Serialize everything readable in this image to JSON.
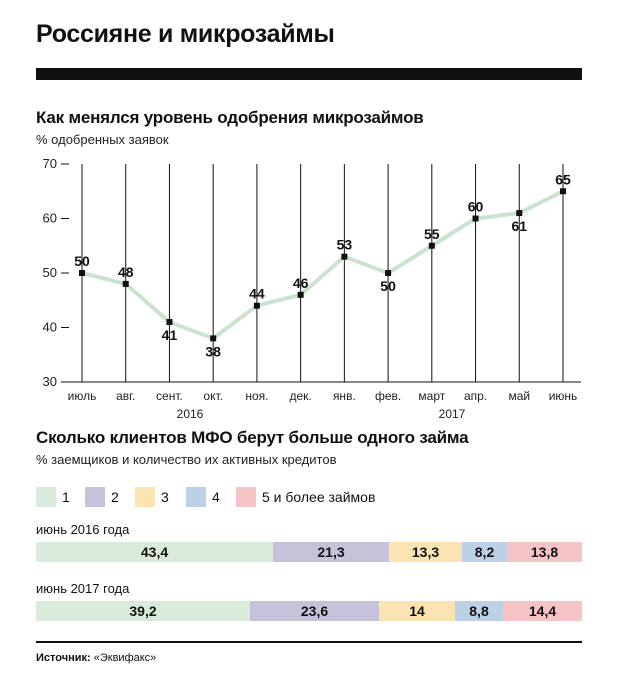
{
  "title": "Россияне и микрозаймы",
  "chart_data": [
    {
      "type": "line",
      "title": "Как менялся уровень одобрения микрозаймов",
      "subtitle": "% одобренных заявок",
      "categories": [
        "июль",
        "авг.",
        "сент.",
        "окт.",
        "ноя.",
        "дек.",
        "янв.",
        "фев.",
        "март",
        "апр.",
        "май",
        "июнь"
      ],
      "year_labels": [
        "2016",
        "2017"
      ],
      "values": [
        50,
        48,
        41,
        38,
        44,
        46,
        53,
        50,
        55,
        60,
        61,
        65
      ],
      "ylim": [
        30,
        70
      ],
      "yticks": [
        30,
        40,
        50,
        60,
        70
      ],
      "grid": "vertical",
      "line_color": "#c9e3cf"
    },
    {
      "type": "bar",
      "orientation": "horizontal-stacked-100",
      "title": "Сколько клиентов МФО берут больше одного займа",
      "subtitle": "% заемщиков и количество их активных кредитов",
      "legend": [
        {
          "label": "1",
          "color": "#d9ecdb"
        },
        {
          "label": "2",
          "color": "#c6c2d9"
        },
        {
          "label": "3",
          "color": "#fbe3b2"
        },
        {
          "label": "4",
          "color": "#bcd0e6"
        },
        {
          "label": "5 и более займов",
          "color": "#f6c4c6"
        }
      ],
      "rows": [
        {
          "label": "июнь 2016 года",
          "values": [
            43.4,
            21.3,
            13.3,
            8.2,
            13.8
          ],
          "value_labels": [
            "43,4",
            "21,3",
            "13,3",
            "8,2",
            "13,8"
          ]
        },
        {
          "label": "июнь 2017 года",
          "values": [
            39.2,
            23.6,
            14,
            8.8,
            14.4
          ],
          "value_labels": [
            "39,2",
            "23,6",
            "14",
            "8,8",
            "14,4"
          ]
        }
      ]
    }
  ],
  "source": {
    "label": "Источник:",
    "text": "«Эквифакс»"
  }
}
